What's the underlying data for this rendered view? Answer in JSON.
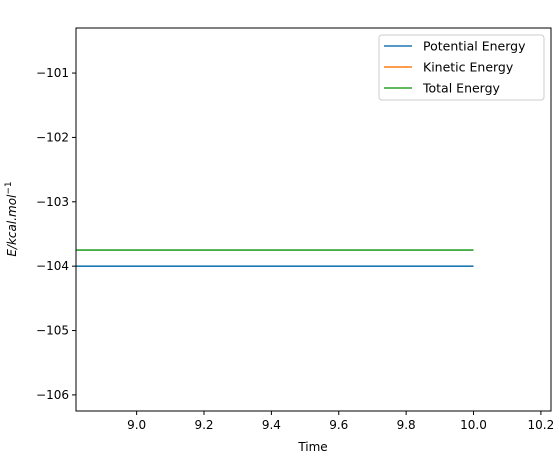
{
  "chart_data": {
    "type": "line",
    "title": "",
    "xlabel": "Time",
    "ylabel": "E/kcal.mol",
    "ylabel_superscript": "−1",
    "xlim": [
      8.82,
      10.23
    ],
    "ylim": [
      -106.25,
      -100.3
    ],
    "xticks": [
      9.0,
      9.2,
      9.4,
      9.6,
      9.8,
      10.0,
      10.2
    ],
    "xtick_labels": [
      "9.0",
      "9.2",
      "9.4",
      "9.6",
      "9.8",
      "10.0",
      "10.2"
    ],
    "yticks": [
      -106,
      -105,
      -104,
      -103,
      -102,
      -101
    ],
    "ytick_labels": [
      "−106",
      "−105",
      "−104",
      "−103",
      "−102",
      "−101"
    ],
    "grid": false,
    "legend_position": "top-right",
    "series": [
      {
        "name": "Potential Energy",
        "color": "#1f77b4",
        "x": [
          8.82,
          9.0,
          9.2,
          9.4,
          9.6,
          9.8,
          10.0
        ],
        "y": [
          -104.0,
          -104.0,
          -104.0,
          -104.0,
          -104.0,
          -104.0,
          -104.0
        ]
      },
      {
        "name": "Kinetic Energy",
        "color": "#ff7f0e",
        "x": [],
        "y": []
      },
      {
        "name": "Total Energy",
        "color": "#2ca02c",
        "x": [
          8.82,
          9.0,
          9.2,
          9.4,
          9.6,
          9.8,
          10.0
        ],
        "y": [
          -103.75,
          -103.75,
          -103.75,
          -103.75,
          -103.75,
          -103.75,
          -103.75
        ]
      }
    ]
  }
}
